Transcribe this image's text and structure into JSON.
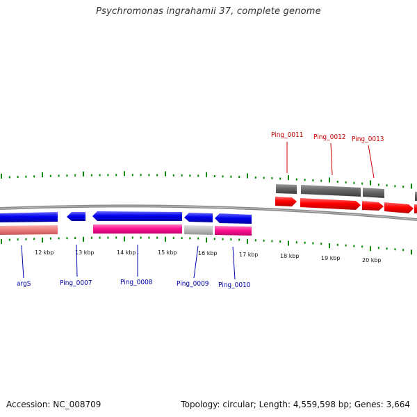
{
  "title": "Psychromonas ingrahamii 37, complete genome",
  "footer": {
    "accession": "Accession: NC_008709",
    "summary": "Topology: circular; Length: 4,559,598 bp; Genes: 3,664"
  },
  "colors": {
    "forward_cds": "#ff0000",
    "reverse_cds": "#0000ee",
    "forward_gene": "#666666",
    "reverse_gene": "#ff1493",
    "rna_gene": "#f08080",
    "pseudo_gene": "#c0c0c0",
    "backbone": "#888888",
    "ticks": "#008800",
    "forward_label": "#cc0000",
    "reverse_label": "#0000aa"
  },
  "kbp_labels": [
    "12 kbp",
    "13 kbp",
    "14 kbp",
    "15 kbp",
    "16 kbp",
    "17 kbp",
    "18 kbp",
    "19 kbp",
    "20 kbp"
  ],
  "forward_labels": [
    "Ping_0011",
    "Ping_0012",
    "Ping_0013"
  ],
  "reverse_labels": [
    "argS",
    "Ping_0007",
    "Ping_0008",
    "Ping_0009",
    "Ping_0010"
  ]
}
